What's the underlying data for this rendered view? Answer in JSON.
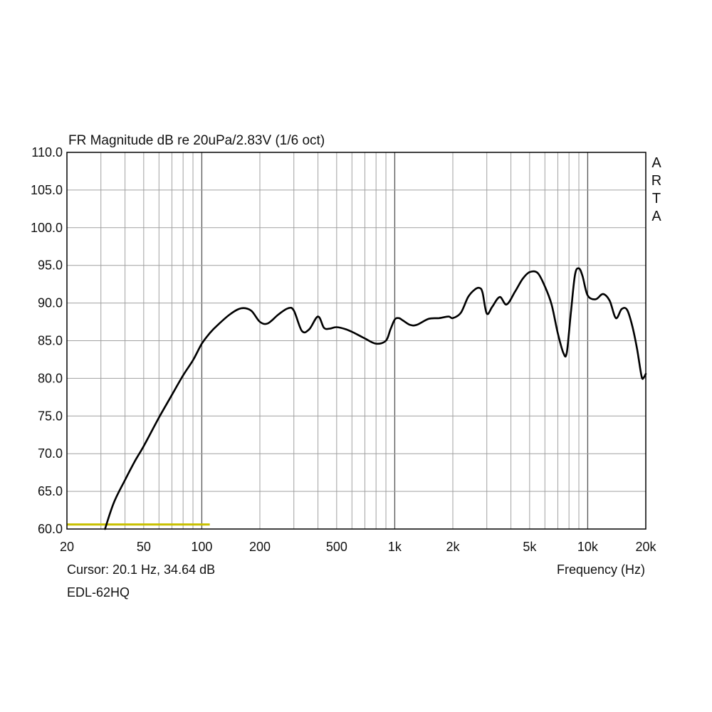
{
  "chart_data": {
    "type": "line",
    "title": "FR Magnitude dB re 20uPa/2.83V (1/6 oct)",
    "xlabel": "Frequency (Hz)",
    "ylabel": "",
    "x_scale": "log",
    "xlim": [
      20,
      20000
    ],
    "ylim": [
      60,
      110
    ],
    "grid": true,
    "x_ticks": [
      {
        "value": 20,
        "label": "20"
      },
      {
        "value": 50,
        "label": "50"
      },
      {
        "value": 100,
        "label": "100"
      },
      {
        "value": 200,
        "label": "200"
      },
      {
        "value": 500,
        "label": "500"
      },
      {
        "value": 1000,
        "label": "1k"
      },
      {
        "value": 2000,
        "label": "2k"
      },
      {
        "value": 5000,
        "label": "5k"
      },
      {
        "value": 10000,
        "label": "10k"
      },
      {
        "value": 20000,
        "label": "20k"
      }
    ],
    "y_ticks": [
      {
        "value": 110,
        "label": "110.0"
      },
      {
        "value": 105,
        "label": "105.0"
      },
      {
        "value": 100,
        "label": "100.0"
      },
      {
        "value": 95,
        "label": "95.0"
      },
      {
        "value": 90,
        "label": "90.0"
      },
      {
        "value": 85,
        "label": "85.0"
      },
      {
        "value": 80,
        "label": "80.0"
      },
      {
        "value": 75,
        "label": "75.0"
      },
      {
        "value": 70,
        "label": "70.0"
      },
      {
        "value": 65,
        "label": "65.0"
      },
      {
        "value": 60,
        "label": "60.0"
      }
    ],
    "series": [
      {
        "name": "EDL-62HQ",
        "color": "#000000",
        "x": [
          31.5,
          35,
          40,
          45,
          50,
          60,
          70,
          80,
          90,
          100,
          110,
          120,
          140,
          160,
          180,
          200,
          220,
          250,
          280,
          300,
          330,
          360,
          400,
          430,
          460,
          500,
          560,
          620,
          700,
          800,
          900,
          950,
          1000,
          1050,
          1100,
          1200,
          1300,
          1500,
          1700,
          1900,
          2000,
          2200,
          2400,
          2600,
          2750,
          2850,
          3000,
          3200,
          3500,
          3800,
          4200,
          4600,
          5000,
          5500,
          6000,
          6500,
          7000,
          7500,
          7800,
          8200,
          8600,
          9000,
          9400,
          10000,
          11000,
          12000,
          13000,
          14000,
          15000,
          16000,
          17000,
          18000,
          19000,
          19500,
          20000
        ],
        "y": [
          60.0,
          63.5,
          66.5,
          69.0,
          71.0,
          74.8,
          77.8,
          80.4,
          82.4,
          84.6,
          86.0,
          87.0,
          88.5,
          89.3,
          89.0,
          87.5,
          87.3,
          88.5,
          89.3,
          89.0,
          86.3,
          86.5,
          88.2,
          86.7,
          86.6,
          86.8,
          86.5,
          86.0,
          85.3,
          84.6,
          85.0,
          86.5,
          87.8,
          88.0,
          87.7,
          87.1,
          87.1,
          87.9,
          88.0,
          88.2,
          88.0,
          88.7,
          90.8,
          91.8,
          92.0,
          91.4,
          88.6,
          89.5,
          90.8,
          89.8,
          91.5,
          93.2,
          94.1,
          94.0,
          92.2,
          89.8,
          86.0,
          83.3,
          83.5,
          89.0,
          93.8,
          94.6,
          93.6,
          91.0,
          90.5,
          91.2,
          90.3,
          88.0,
          89.2,
          89.1,
          87.0,
          84.0,
          80.3,
          80.1,
          80.6
        ]
      }
    ],
    "reference_line": {
      "color": "#c8c000",
      "x": [
        20,
        110
      ],
      "y": [
        60.6,
        60.6
      ]
    },
    "side_text": [
      "A",
      "R",
      "T",
      "A"
    ],
    "cursor_text": "Cursor: 20.1 Hz, 34.64 dB",
    "device_label": "EDL-62HQ"
  },
  "colors": {
    "grid": "#a0a0a0",
    "frame": "#000000",
    "curve": "#000000",
    "background": "#ffffff"
  }
}
